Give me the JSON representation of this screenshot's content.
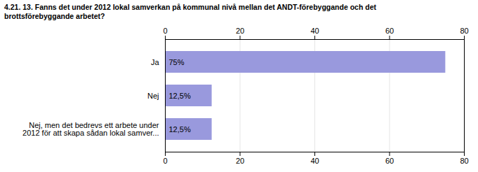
{
  "chart_data": {
    "type": "bar",
    "orientation": "horizontal",
    "title": "4.21. 13. Fanns det under 2012 lokal samverkan på kommunal nivå mellan det ANDT-förebyggande och det\nbrottsförebyggande arbetet?",
    "categories": [
      "Ja",
      "Nej",
      "Nej, men det bedrevs ett arbete under\n2012 för att skapa sådan lokal samver..."
    ],
    "values": [
      75,
      12.5,
      12.5
    ],
    "value_labels": [
      "75%",
      "12,5%",
      "12,5%"
    ],
    "data_labels": true,
    "color": "#9999dd",
    "xlim": [
      0,
      80
    ],
    "xticks": [
      0,
      20,
      40,
      60,
      80
    ],
    "grid": true
  }
}
